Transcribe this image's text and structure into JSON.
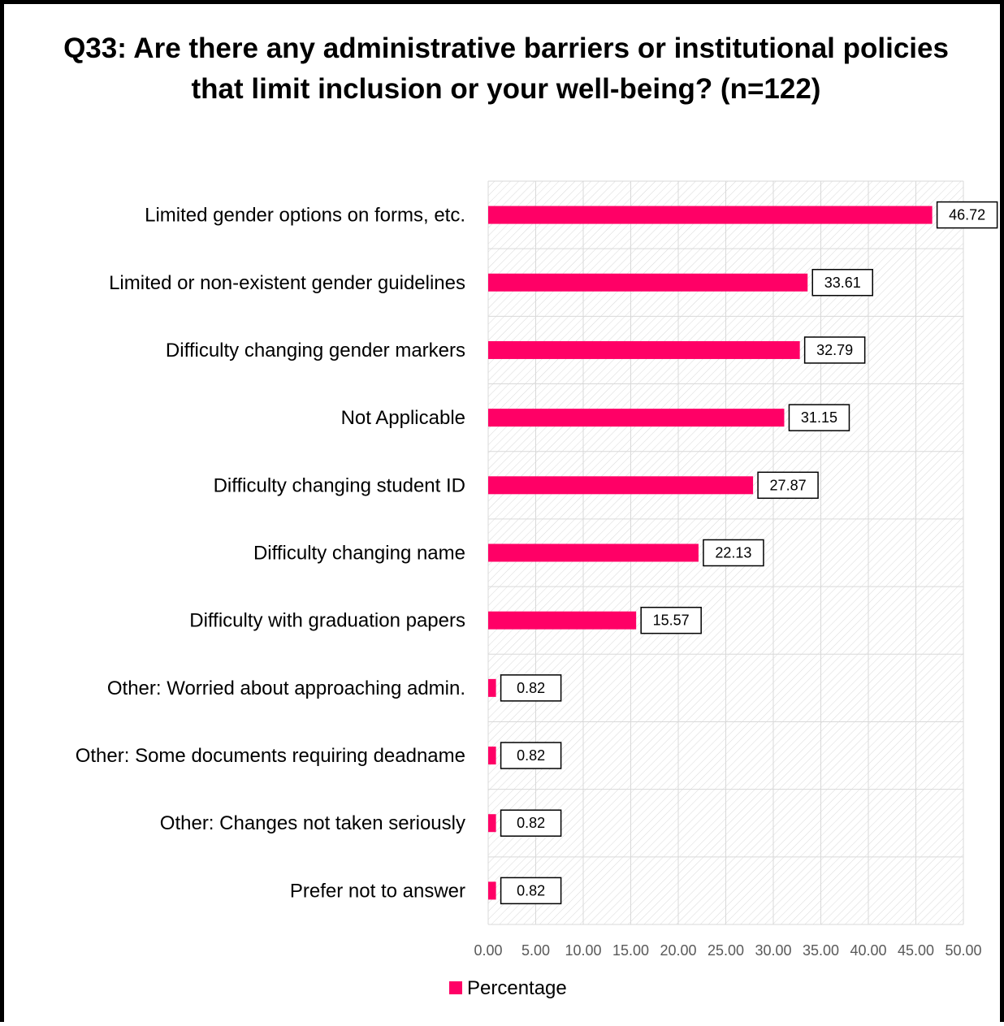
{
  "chart_data": {
    "type": "bar",
    "orientation": "horizontal",
    "title": "Q33: Are there any administrative barriers or institutional policies that limit inclusion or your well-being? (n=122)",
    "categories": [
      "Limited gender options on forms, etc.",
      "Limited or non-existent gender guidelines",
      "Difficulty changing gender markers",
      "Not Applicable",
      "Difficulty changing student ID",
      "Difficulty changing name",
      "Difficulty with graduation papers",
      "Other: Worried about approaching admin.",
      "Other: Some documents requiring deadname",
      "Other: Changes not taken seriously",
      "Prefer not to answer"
    ],
    "series": [
      {
        "name": "Percentage",
        "color": "#ff0066",
        "values": [
          46.72,
          33.61,
          32.79,
          31.15,
          27.87,
          22.13,
          15.57,
          0.82,
          0.82,
          0.82,
          0.82
        ]
      }
    ],
    "data_labels": [
      "46.72",
      "33.61",
      "32.79",
      "31.15",
      "27.87",
      "22.13",
      "15.57",
      "0.82",
      "0.82",
      "0.82",
      "0.82"
    ],
    "x_ticks": [
      "0.00",
      "5.00",
      "10.00",
      "15.00",
      "20.00",
      "25.00",
      "30.00",
      "35.00",
      "40.00",
      "45.00",
      "50.00"
    ],
    "xlim": [
      0,
      50
    ],
    "xlabel": "",
    "ylabel": "",
    "grid": true,
    "legend": {
      "position": "bottom",
      "label": "Percentage"
    }
  }
}
